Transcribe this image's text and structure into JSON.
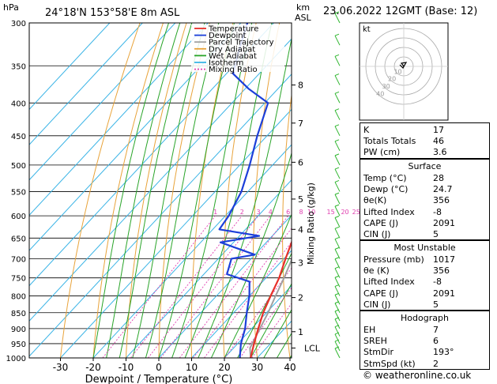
{
  "header": {
    "hpa_label": "hPa",
    "location": "24°18'N  153°58'E  8m  ASL",
    "km_label": "km",
    "asl_label": "ASL",
    "datetime": "23.06.2022  12GMT  (Base: 12)"
  },
  "footer": {
    "credit": "© weatheronline.co.uk"
  },
  "hodograph": {
    "label": "kt",
    "ring_labels": [
      "10",
      "20",
      "30",
      "40"
    ]
  },
  "indices": [
    {
      "k": "K",
      "v": "17"
    },
    {
      "k": "Totals Totals",
      "v": "46"
    },
    {
      "k": "PW (cm)",
      "v": "3.6"
    }
  ],
  "surface": {
    "title": "Surface",
    "rows": [
      {
        "k": "Temp (°C)",
        "v": "28"
      },
      {
        "k": "Dewp (°C)",
        "v": "24.7"
      },
      {
        "k": "θe(K)",
        "v": "356"
      },
      {
        "k": "Lifted Index",
        "v": "-8"
      },
      {
        "k": "CAPE (J)",
        "v": "2091"
      },
      {
        "k": "CIN (J)",
        "v": "5"
      }
    ]
  },
  "most_unstable": {
    "title": "Most Unstable",
    "rows": [
      {
        "k": "Pressure (mb)",
        "v": "1017"
      },
      {
        "k": "θe (K)",
        "v": "356"
      },
      {
        "k": "Lifted Index",
        "v": "-8"
      },
      {
        "k": "CAPE (J)",
        "v": "2091"
      },
      {
        "k": "CIN (J)",
        "v": "5"
      }
    ]
  },
  "hodo_table": {
    "title": "Hodograph",
    "rows": [
      {
        "k": "EH",
        "v": "7"
      },
      {
        "k": "SREH",
        "v": "6"
      },
      {
        "k": "StmDir",
        "v": "193°"
      },
      {
        "k": "StmSpd (kt)",
        "v": "2"
      }
    ]
  },
  "chart_data": {
    "type": "line",
    "chart": "skew-T log-p diagram",
    "xlabel": "Dewpoint / Temperature (°C)",
    "ylabel_right": "Mixing Ratio (g/kg)",
    "x_ticks": [
      -30,
      -20,
      -10,
      0,
      10,
      20,
      30,
      40
    ],
    "xlim": [
      -35,
      40
    ],
    "ylim": [
      1000,
      300
    ],
    "pressure_levels": [
      300,
      350,
      400,
      450,
      500,
      550,
      600,
      650,
      700,
      750,
      800,
      850,
      900,
      950,
      1000
    ],
    "km_ticks": [
      {
        "km": "1",
        "p": 910
      },
      {
        "km": "2",
        "p": 805
      },
      {
        "km": "3",
        "p": 710
      },
      {
        "km": "4",
        "p": 630
      },
      {
        "km": "5",
        "p": 565
      },
      {
        "km": "6",
        "p": 495
      },
      {
        "km": "7",
        "p": 430
      },
      {
        "km": "8",
        "p": 375
      }
    ],
    "lcl": {
      "label": "LCL",
      "p": 965
    },
    "mixing_ratio_labels": [
      "1",
      "2",
      "3",
      "4",
      "6",
      "8",
      "10",
      "15",
      "20",
      "25"
    ],
    "mixing_ratio_values": [
      1,
      2,
      3,
      4,
      6,
      8,
      10,
      15,
      20,
      25
    ],
    "legend": [
      "Temperature",
      "Dewpoint",
      "Parcel Trajectory",
      "Dry Adiabat",
      "Wet Adiabat",
      "Isotherm",
      "Mixing Ratio"
    ],
    "colors": {
      "temperature": "#e8302a",
      "dewpoint": "#1c3fd9",
      "parcel": "#a0a0a0",
      "dry_adiabat": "#e8a33a",
      "wet_adiabat": "#28a428",
      "isotherm": "#3ab4e6",
      "mixing_ratio": "#e03fb0"
    },
    "series": [
      {
        "name": "Temperature",
        "points": [
          [
            1000,
            28
          ],
          [
            950,
            25
          ],
          [
            900,
            22
          ],
          [
            850,
            19
          ],
          [
            800,
            16.5
          ],
          [
            750,
            14
          ],
          [
            700,
            10.5
          ],
          [
            650,
            7
          ],
          [
            600,
            3.5
          ],
          [
            550,
            -1
          ],
          [
            500,
            -6
          ],
          [
            450,
            -12
          ],
          [
            400,
            -19
          ],
          [
            350,
            -27.5
          ],
          [
            300,
            -37
          ]
        ]
      },
      {
        "name": "Dewpoint",
        "points": [
          [
            1000,
            24.7
          ],
          [
            950,
            21
          ],
          [
            900,
            18
          ],
          [
            850,
            14
          ],
          [
            800,
            10
          ],
          [
            760,
            6
          ],
          [
            740,
            -3
          ],
          [
            700,
            -6
          ],
          [
            690,
            0
          ],
          [
            660,
            -14
          ],
          [
            645,
            -4
          ],
          [
            630,
            -18
          ],
          [
            600,
            -19
          ],
          [
            550,
            -22
          ],
          [
            500,
            -27
          ],
          [
            450,
            -33
          ],
          [
            400,
            -39
          ],
          [
            380,
            -49
          ],
          [
            360,
            -58
          ],
          [
            330,
            -63
          ],
          [
            300,
            -68
          ]
        ]
      },
      {
        "name": "Parcel Trajectory",
        "points": [
          [
            1000,
            28
          ],
          [
            965,
            25
          ],
          [
            900,
            22.5
          ],
          [
            850,
            20.5
          ],
          [
            800,
            18
          ],
          [
            750,
            15.5
          ],
          [
            700,
            12.5
          ],
          [
            650,
            9
          ],
          [
            600,
            5.5
          ],
          [
            550,
            1.5
          ],
          [
            500,
            -3
          ],
          [
            450,
            -8.5
          ],
          [
            400,
            -15
          ],
          [
            350,
            -23
          ],
          [
            300,
            -33
          ]
        ]
      }
    ],
    "wind_barbs_pressures": [
      1000,
      975,
      950,
      925,
      900,
      875,
      850,
      825,
      800,
      775,
      750,
      725,
      700,
      675,
      650,
      625,
      600,
      575,
      550,
      525,
      500,
      475,
      450,
      425,
      400,
      375,
      350,
      325,
      300
    ]
  }
}
